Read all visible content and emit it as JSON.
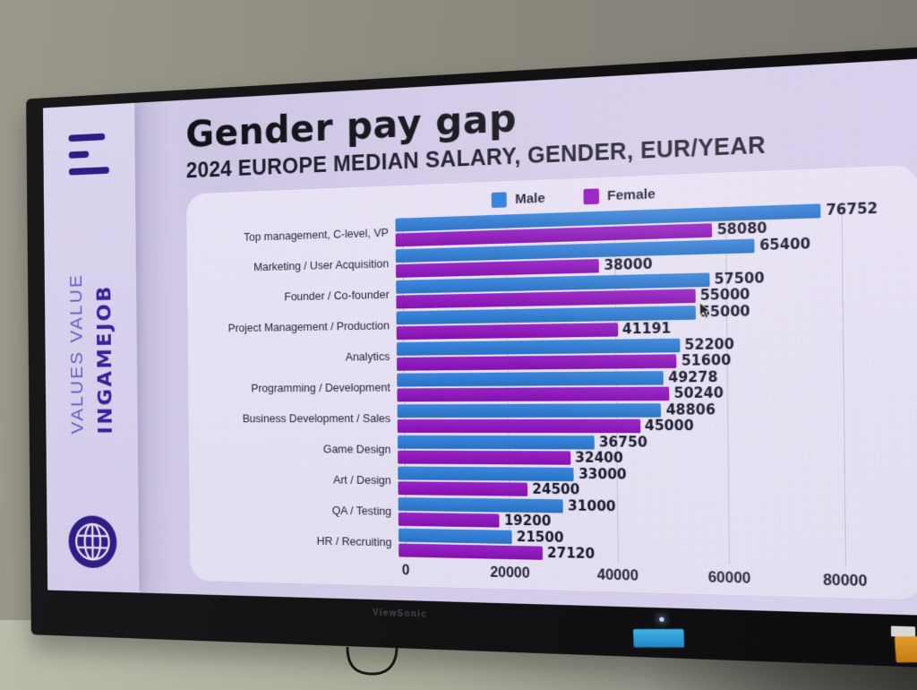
{
  "tv": {
    "brand": "ViewSonic"
  },
  "slide": {
    "title": "Gender pay gap",
    "subtitle": "2024 EUROPE MEDIAN SALARY, GENDER, EUR/YEAR",
    "sidebar": {
      "brand_line1": "VALUES VALUE",
      "brand_line2": "INGAMEJOB"
    }
  },
  "colors": {
    "male_blue": "#2a7edb",
    "female_purple": "#9110c2",
    "brand_dark_purple": "#3a1d9b",
    "brand_light_purple": "#6a5cc2",
    "logo_purple": "#2e1a85"
  },
  "chart_data": {
    "type": "bar",
    "orientation": "horizontal",
    "title": "Gender pay gap",
    "subtitle": "2024 EUROPE MEDIAN SALARY, GENDER, EUR/YEAR",
    "categories": [
      "Top management, C-level, VP",
      "Marketing / User Acquisition",
      "Founder / Co-founder",
      "Project Management / Production",
      "Analytics",
      "Programming / Development",
      "Business Development / Sales",
      "Game Design",
      "Art / Design",
      "QA / Testing",
      "HR / Recruiting"
    ],
    "series": [
      {
        "name": "Male",
        "color": "#2a7edb",
        "values": [
          76752,
          65400,
          57500,
          55000,
          52200,
          49278,
          48806,
          36750,
          33000,
          31000,
          21500
        ]
      },
      {
        "name": "Female",
        "color": "#9110c2",
        "values": [
          58080,
          38000,
          55000,
          41191,
          51600,
          50240,
          45000,
          32400,
          24500,
          19200,
          27120
        ]
      }
    ],
    "xticks": [
      0,
      20000,
      40000,
      60000,
      80000
    ],
    "xlim": [
      0,
      88000
    ],
    "legend_position": "top",
    "grid": true,
    "units": "EUR/YEAR"
  }
}
